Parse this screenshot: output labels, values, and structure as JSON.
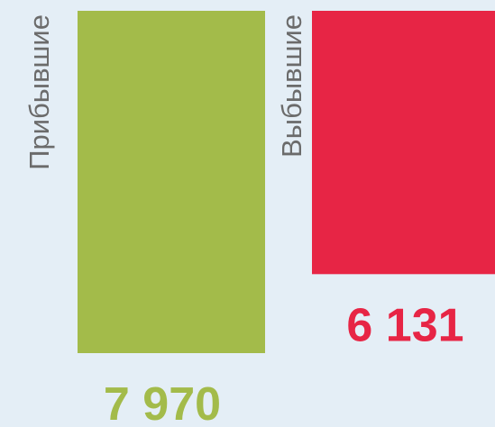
{
  "chart_data": {
    "type": "bar",
    "categories": [
      "Прибывшие",
      "Выбывшие"
    ],
    "values": [
      7970,
      6131
    ],
    "value_labels": [
      "7 970",
      "6 131"
    ],
    "colors": [
      "#a3bb4a",
      "#e72545"
    ]
  }
}
